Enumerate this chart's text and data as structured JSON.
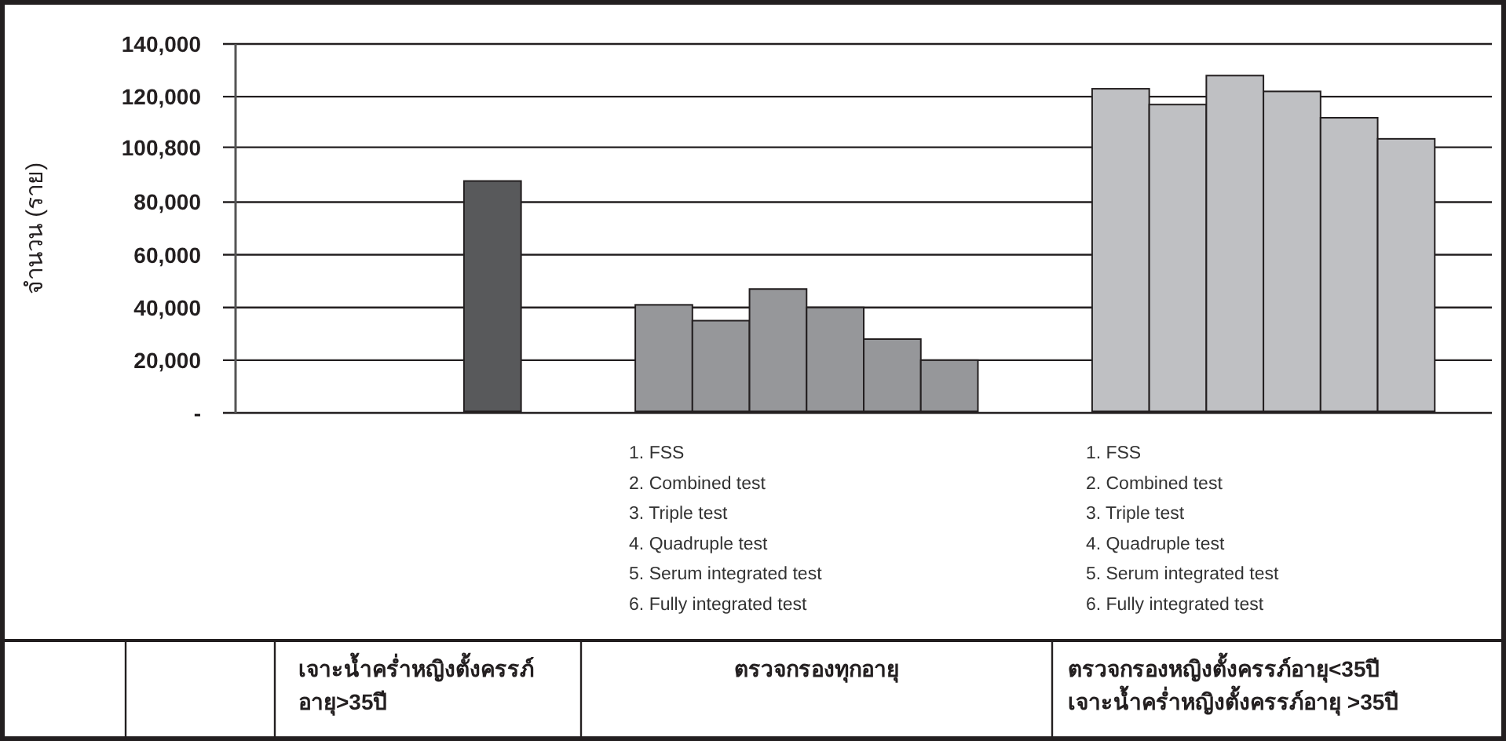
{
  "chart_data": {
    "type": "bar",
    "ylabel": "จำนวน (ราย)",
    "categories": [
      null,
      null,
      null,
      null,
      null,
      null,
      null,
      null,
      null,
      null,
      null,
      null,
      null,
      null,
      null,
      null,
      null,
      null,
      null,
      null,
      null,
      null
    ],
    "values": [
      null,
      null,
      null,
      null,
      88000,
      null,
      null,
      41000,
      35000,
      47000,
      40000,
      28000,
      20000,
      null,
      null,
      123000,
      117000,
      128000,
      122000,
      112000,
      104000,
      null
    ],
    "colors": [
      null,
      null,
      null,
      null,
      "#58595b",
      null,
      null,
      "#96979a",
      "#96979a",
      "#96979a",
      "#96979a",
      "#96979a",
      "#96979a",
      null,
      null,
      "#bfc0c3",
      "#bfc0c3",
      "#bfc0c3",
      "#bfc0c3",
      "#bfc0c3",
      "#bfc0c3",
      null
    ],
    "ylim": [
      0,
      140000
    ],
    "yticks": [
      {
        "value": 0,
        "label": "-"
      },
      {
        "value": 20000,
        "label": "20,000"
      },
      {
        "value": 40000,
        "label": "40,000"
      },
      {
        "value": 60000,
        "label": "60,000"
      },
      {
        "value": 80000,
        "label": "80,000"
      },
      {
        "value": 100800,
        "label": "100,800"
      },
      {
        "value": 120000,
        "label": "120,000"
      },
      {
        "value": 140000,
        "label": "140,000"
      }
    ],
    "grid": "y",
    "annotations": [
      "1. FSS\n2. Combined test\n3. Triple test\n4. Quadruple test\n5. Serum integrated test\n6. Fully integrated test",
      "1. FSS\n2. Combined test\n3. Triple test\n4. Quadruple test\n5. Serum integrated test\n6. Fully integrated test",
      "เจาะน้ำคร่ำหญิงตั้งครรภ์\nอายุ>35ปี",
      "ตรวจกรองทุกอายุ",
      "ตรวจกรองหญิงตั้งครรภ์อายุ<35ปี\nเจาะน้ำคร่ำหญิงตั้งครรภ์อายุ >35ปี"
    ]
  }
}
